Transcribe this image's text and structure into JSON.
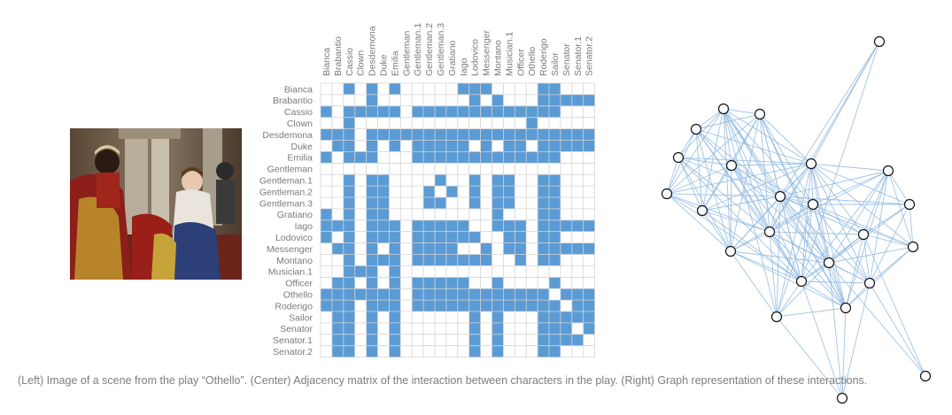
{
  "caption": "(Left) Image of a scene from the play “Othello”. (Center) Adjacency matrix of the interaction between characters in the play. (Right) Graph representation of these interactions.",
  "painting": {
    "subject": "Othello scene painting"
  },
  "matrix": {
    "characters": [
      "Bianca",
      "Brabantio",
      "Cassio",
      "Clown",
      "Desdemona",
      "Duke",
      "Emilia",
      "Gentleman",
      "Gentleman.1",
      "Gentleman.2",
      "Gentleman.3",
      "Gratiano",
      "Iago",
      "Lodovico",
      "Messenger",
      "Montano",
      "Musician.1",
      "Officer",
      "Othello",
      "Roderigo",
      "Sailor",
      "Senator",
      "Senator.1",
      "Senator.2"
    ],
    "rows": [
      "001010100000111000011000",
      "000010000000010100011111",
      "101111101111111111111000",
      "001000000000000000100000",
      "111011111111111111111111",
      "011010101111101011011111",
      "101110001111111111111000",
      "000000000000000000000000",
      "001011000010010110011000",
      "001011000101010110011000",
      "001011000110010110011000",
      "101011000000000100011000",
      "111011101111100111011111",
      "101011101111110011011000",
      "011010101111001011011111",
      "001011101111111001011000",
      "001110100000000000000000",
      "011010101111100100001000",
      "111111101111111111110111",
      "111011101111111111111011",
      "011010100000010100011111",
      "011010100000010100011101",
      "011010100000010100011110",
      "011010100000010100011000"
    ],
    "fill_color": "#5b9bd5",
    "grid_color": "#d4d4d4"
  },
  "graph": {
    "node_count": 24,
    "edge_color": "#8fb9e0",
    "node_fill": "#ffffff",
    "node_stroke": "#111111"
  }
}
